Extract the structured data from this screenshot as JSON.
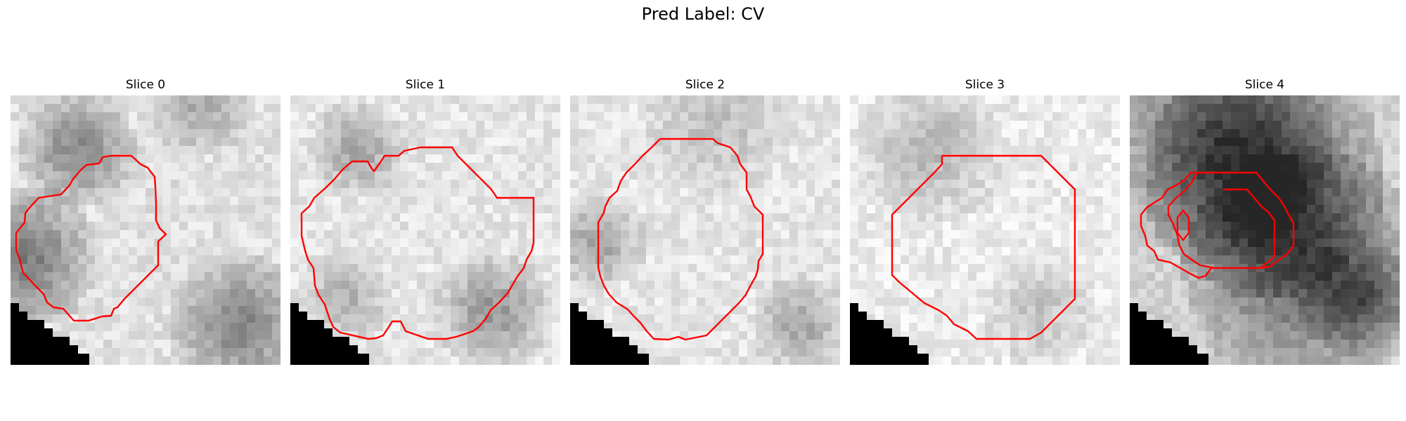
{
  "title": "Pred Label: CV",
  "contour_color": "#ff0000",
  "panels": [
    {
      "title": "Slice 0"
    },
    {
      "title": "Slice 1"
    },
    {
      "title": "Slice 2"
    },
    {
      "title": "Slice 3"
    },
    {
      "title": "Slice 4"
    }
  ]
}
